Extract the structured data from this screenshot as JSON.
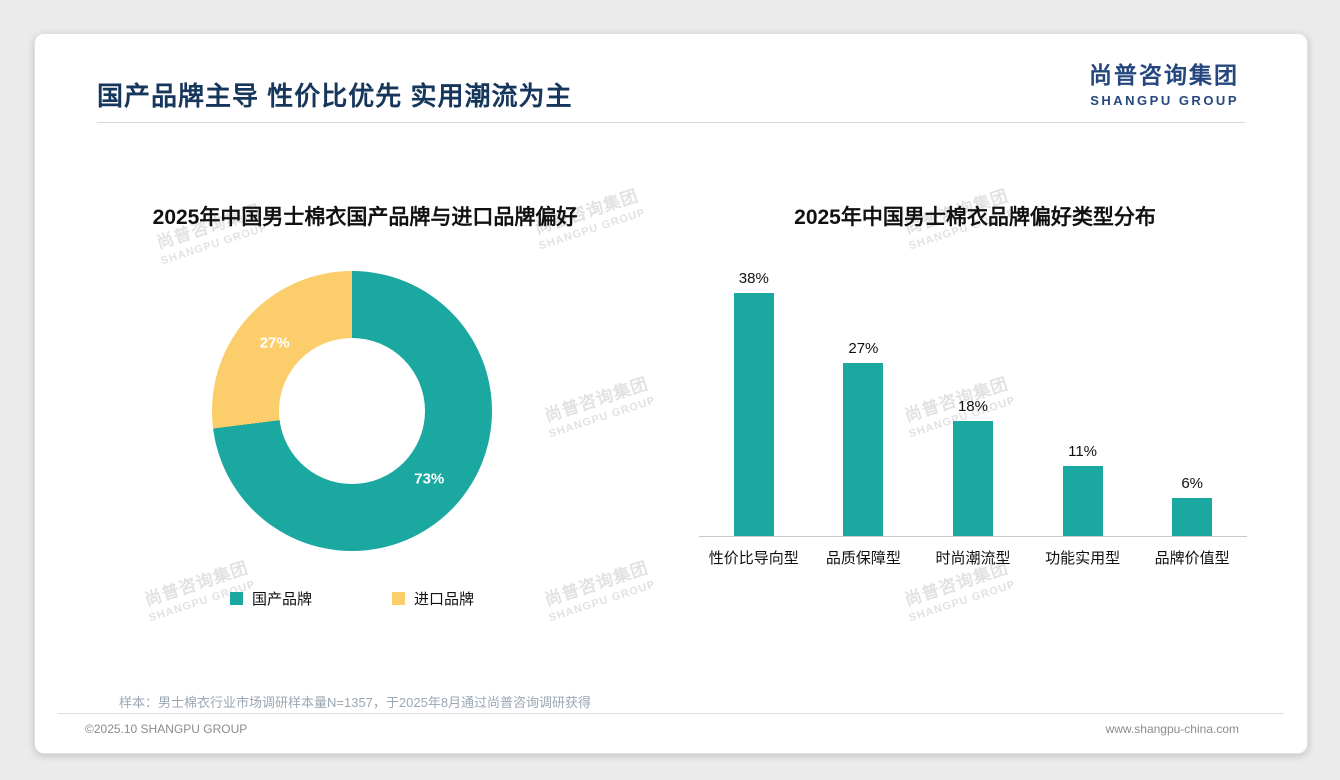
{
  "page": {
    "header_title": "国产品牌主导 性价比优先 实用潮流为主",
    "logo": {
      "cn": "尚普咨询集团",
      "en": "SHANGPU GROUP"
    },
    "watermark": {
      "cn": "尚普咨询集团",
      "en": "SHANGPU GROUP"
    },
    "sample_note": "样本：男士棉衣行业市场调研样本量N=1357，于2025年8月通过尚普咨询调研获得",
    "footer_left": "©2025.10 SHANGPU GROUP",
    "footer_right": "www.shangpu-china.com"
  },
  "colors": {
    "teal": "#1BA8A0",
    "yellow": "#FBCE6B",
    "navy": "#26477E",
    "title_navy": "#16365C"
  },
  "chart_data": [
    {
      "type": "pie",
      "donut": true,
      "title": "2025年中国男士棉衣国产品牌与进口品牌偏好",
      "slices": [
        {
          "label": "国产品牌",
          "value": 73,
          "data_label": "73%",
          "color": "#1BA8A0"
        },
        {
          "label": "进口品牌",
          "value": 27,
          "data_label": "27%",
          "color": "#FBCE6B"
        }
      ],
      "legend_position": "bottom"
    },
    {
      "type": "bar",
      "title": "2025年中国男士棉衣品牌偏好类型分布",
      "categories": [
        "性价比导向型",
        "品质保障型",
        "时尚潮流型",
        "功能实用型",
        "品牌价值型"
      ],
      "values": [
        38,
        27,
        18,
        11,
        6
      ],
      "data_labels": [
        "38%",
        "27%",
        "18%",
        "11%",
        "6%"
      ],
      "bar_color": "#1BA8A0",
      "ylim": [
        0,
        40
      ],
      "grid": false,
      "legend_position": "none"
    }
  ]
}
